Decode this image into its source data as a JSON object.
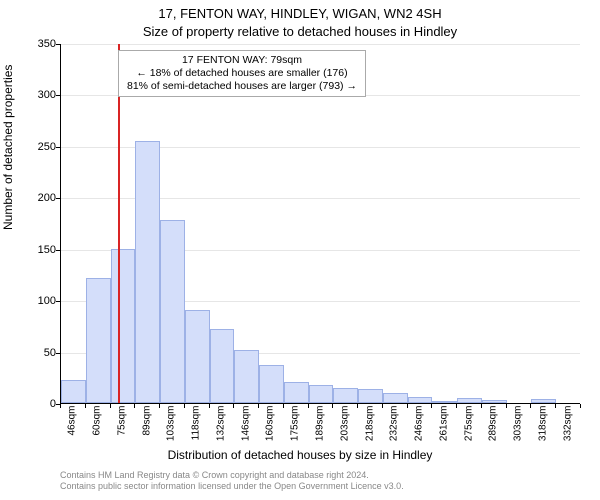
{
  "chart": {
    "type": "histogram",
    "title1": "17, FENTON WAY, HINDLEY, WIGAN, WN2 4SH",
    "title2": "Size of property relative to detached houses in Hindley",
    "ylabel": "Number of detached properties",
    "xlabel": "Distribution of detached houses by size in Hindley",
    "background_color": "#ffffff",
    "bar_fill": "#d4defa",
    "bar_border": "#9db1e6",
    "grid_color": "#e6e6e6",
    "ref_line_color": "#d92424",
    "ref_value_sqm": 79,
    "title_fontsize": 13,
    "label_fontsize": 12,
    "tick_fontsize": 11,
    "ylim": [
      0,
      350
    ],
    "ytick_step": 50,
    "bins": [
      {
        "label": "46sqm",
        "value": 22
      },
      {
        "label": "60sqm",
        "value": 122
      },
      {
        "label": "75sqm",
        "value": 150
      },
      {
        "label": "89sqm",
        "value": 255
      },
      {
        "label": "103sqm",
        "value": 178
      },
      {
        "label": "118sqm",
        "value": 90
      },
      {
        "label": "132sqm",
        "value": 72
      },
      {
        "label": "146sqm",
        "value": 52
      },
      {
        "label": "160sqm",
        "value": 37
      },
      {
        "label": "175sqm",
        "value": 20
      },
      {
        "label": "189sqm",
        "value": 18
      },
      {
        "label": "203sqm",
        "value": 15
      },
      {
        "label": "218sqm",
        "value": 14
      },
      {
        "label": "232sqm",
        "value": 10
      },
      {
        "label": "246sqm",
        "value": 6
      },
      {
        "label": "261sqm",
        "value": 2
      },
      {
        "label": "275sqm",
        "value": 5
      },
      {
        "label": "289sqm",
        "value": 3
      },
      {
        "label": "303sqm",
        "value": 0
      },
      {
        "label": "318sqm",
        "value": 4
      },
      {
        "label": "332sqm",
        "value": 0
      }
    ],
    "info_box": {
      "line1": "17 FENTON WAY: 79sqm",
      "line2": "← 18% of detached houses are smaller (176)",
      "line3": "81% of semi-detached houses are larger (793) →"
    },
    "footer": {
      "line1": "Contains HM Land Registry data © Crown copyright and database right 2024.",
      "line2": "Contains public sector information licensed under the Open Government Licence v3.0."
    }
  }
}
